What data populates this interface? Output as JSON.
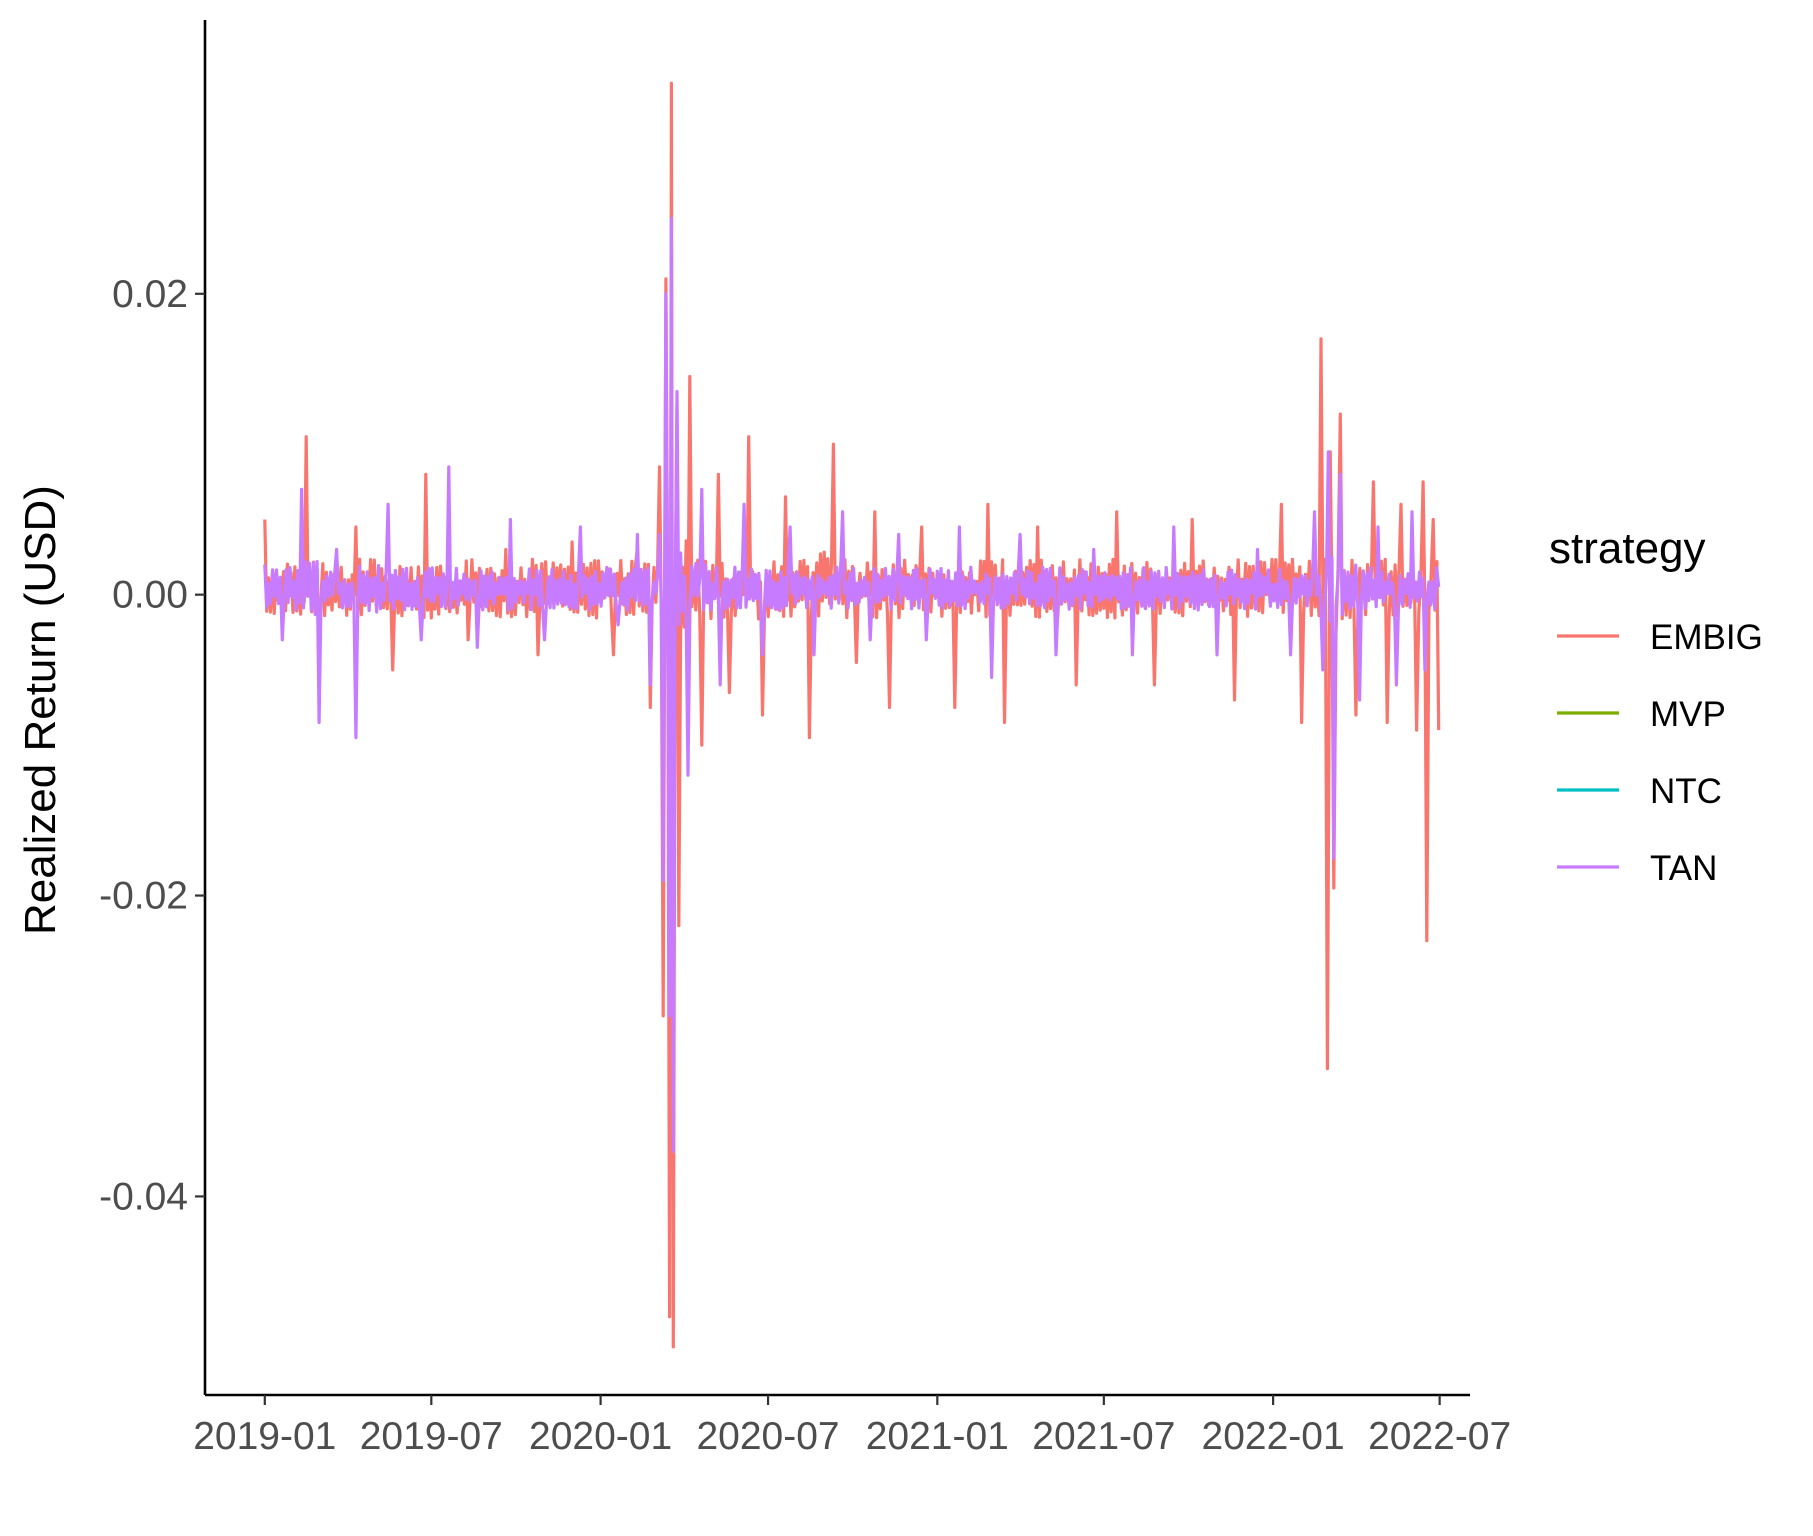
{
  "chart_data": {
    "type": "line",
    "title": "",
    "xlabel": "",
    "ylabel": "Realized Return (USD)",
    "x_range": [
      "2019-01-01",
      "2022-07-01"
    ],
    "xlim": [
      "2018-10-28",
      "2022-08-03"
    ],
    "ylim": [
      -0.0532,
      0.0382
    ],
    "grid": false,
    "legend": {
      "title": "strategy",
      "position": "right"
    },
    "x_ticks": [
      "2019-01",
      "2019-07",
      "2020-01",
      "2020-07",
      "2021-01",
      "2021-07",
      "2022-01",
      "2022-07"
    ],
    "y_ticks": [
      "-0.04",
      "-0.02",
      "0.00",
      "0.02"
    ],
    "y_tick_values": [
      -0.04,
      -0.02,
      0.0,
      0.02
    ],
    "series": [
      {
        "name": "EMBIG",
        "color": "#F8766D",
        "x": [
          "2019-01-01",
          "2019-02-15",
          "2019-03-01",
          "2019-04-10",
          "2019-05-20",
          "2019-06-25",
          "2019-08-10",
          "2019-09-20",
          "2019-10-25",
          "2019-12-01",
          "2020-01-15",
          "2020-02-10",
          "2020-02-24",
          "2020-03-05",
          "2020-03-09",
          "2020-03-12",
          "2020-03-16",
          "2020-03-18",
          "2020-03-20",
          "2020-03-24",
          "2020-03-26",
          "2020-04-07",
          "2020-04-20",
          "2020-05-08",
          "2020-05-20",
          "2020-06-10",
          "2020-06-25",
          "2020-07-20",
          "2020-08-15",
          "2020-09-10",
          "2020-10-05",
          "2020-10-25",
          "2020-11-10",
          "2020-12-15",
          "2021-01-20",
          "2021-02-25",
          "2021-03-15",
          "2021-04-20",
          "2021-06-01",
          "2021-07-15",
          "2021-08-25",
          "2021-10-05",
          "2021-11-20",
          "2022-01-10",
          "2022-02-01",
          "2022-02-22",
          "2022-03-01",
          "2022-03-04",
          "2022-03-08",
          "2022-03-15",
          "2022-04-01",
          "2022-04-20",
          "2022-05-05",
          "2022-05-20",
          "2022-06-06",
          "2022-06-13",
          "2022-06-17",
          "2022-06-24",
          "2022-06-30"
        ],
        "values": [
          0.005,
          0.0105,
          -0.006,
          0.0045,
          -0.005,
          0.008,
          -0.003,
          0.003,
          -0.004,
          0.0035,
          -0.004,
          0.003,
          -0.0075,
          0.0085,
          -0.028,
          0.021,
          -0.048,
          0.034,
          -0.05,
          0.0125,
          -0.022,
          0.0145,
          -0.01,
          0.008,
          -0.0065,
          0.0105,
          -0.008,
          0.0065,
          -0.0095,
          0.01,
          -0.0045,
          0.0055,
          -0.0075,
          0.0045,
          -0.0075,
          0.006,
          -0.0085,
          0.0045,
          -0.006,
          0.0055,
          -0.006,
          0.005,
          -0.007,
          0.006,
          -0.0085,
          0.017,
          -0.0315,
          0.0095,
          -0.0195,
          0.012,
          -0.008,
          0.0075,
          -0.0085,
          0.006,
          -0.009,
          0.0075,
          -0.023,
          0.005,
          -0.009
        ]
      },
      {
        "name": "MVP",
        "color": "#7CAE00",
        "x": [],
        "values": []
      },
      {
        "name": "NTC",
        "color": "#00BFC4",
        "x": [],
        "values": []
      },
      {
        "name": "TAN",
        "color": "#C77CFF",
        "x": [
          "2019-01-01",
          "2019-01-20",
          "2019-02-10",
          "2019-03-01",
          "2019-03-20",
          "2019-04-10",
          "2019-05-15",
          "2019-06-20",
          "2019-07-20",
          "2019-08-20",
          "2019-09-25",
          "2019-11-01",
          "2019-12-10",
          "2020-01-20",
          "2020-02-10",
          "2020-02-24",
          "2020-03-05",
          "2020-03-09",
          "2020-03-12",
          "2020-03-16",
          "2020-03-18",
          "2020-03-20",
          "2020-03-24",
          "2020-04-05",
          "2020-04-20",
          "2020-05-10",
          "2020-06-05",
          "2020-06-25",
          "2020-07-25",
          "2020-08-20",
          "2020-09-20",
          "2020-10-20",
          "2020-11-20",
          "2020-12-20",
          "2021-01-25",
          "2021-03-01",
          "2021-04-01",
          "2021-05-10",
          "2021-06-20",
          "2021-08-01",
          "2021-09-15",
          "2021-11-01",
          "2021-12-15",
          "2022-01-20",
          "2022-02-15",
          "2022-02-24",
          "2022-03-02",
          "2022-03-08",
          "2022-03-15",
          "2022-04-05",
          "2022-04-25",
          "2022-05-15",
          "2022-06-01",
          "2022-06-15",
          "2022-06-30"
        ],
        "values": [
          0.002,
          -0.003,
          0.007,
          -0.0085,
          0.003,
          -0.0095,
          0.006,
          -0.003,
          0.0085,
          -0.0035,
          0.005,
          -0.003,
          0.0045,
          -0.002,
          0.004,
          -0.006,
          0.004,
          -0.019,
          0.02,
          -0.028,
          0.025,
          -0.037,
          0.0135,
          -0.012,
          0.007,
          -0.006,
          0.006,
          -0.004,
          0.0045,
          -0.004,
          0.0055,
          -0.003,
          0.004,
          -0.003,
          0.0045,
          -0.0055,
          0.004,
          -0.004,
          0.003,
          -0.004,
          0.0045,
          -0.004,
          0.003,
          -0.004,
          0.0055,
          -0.005,
          0.0095,
          -0.0175,
          0.008,
          -0.007,
          0.0045,
          -0.006,
          0.0055,
          -0.005,
          0.0005
        ]
      }
    ]
  }
}
